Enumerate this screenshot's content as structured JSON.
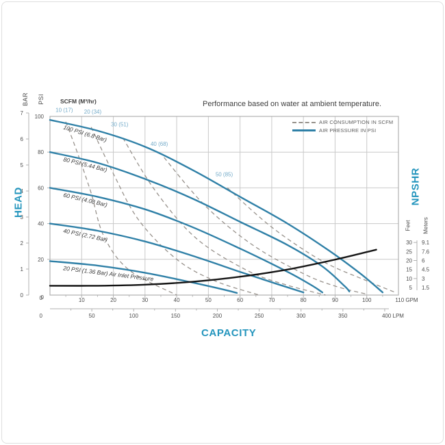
{
  "figure": {
    "title": "Performance based on water at ambient temperature.",
    "scfm_header": "SCFM (M³/hr)",
    "axis_titles": {
      "head": "HEAD",
      "capacity": "CAPACITY",
      "npshr": "NPSHR",
      "bar": "BAR",
      "psi": "PSI",
      "feet": "Feet",
      "meters": "Meters"
    },
    "colors": {
      "curve_blue": "#2f80a7",
      "axis_title_blue": "#2495bd",
      "scfm_label_blue": "#74abc9",
      "dashed_gray": "#98928c",
      "grid_gray": "#c9c9c9",
      "border_gray": "#b0b0b0",
      "npshr_black": "#151515",
      "text_dark": "#3c3c3c",
      "text_gray": "#4d4d4d",
      "legend_text": "#5c5c5c",
      "curve_label": "#3a3a3a"
    }
  },
  "chart_data": {
    "type": "line",
    "title": "Performance based on water at ambient temperature.",
    "xlabel": "CAPACITY",
    "ylabel_left": "HEAD",
    "ylabel_right": "NPSHR",
    "legend": [
      {
        "label": "AIR CONSUMPTION IN SCFM",
        "style": "dashed"
      },
      {
        "label": "AIR PRESSURE IN PSI",
        "style": "solid"
      }
    ],
    "x_axis": {
      "primary_unit": "GPM",
      "primary_range": [
        0,
        110
      ],
      "gpm_ticks": [
        0,
        10,
        20,
        30,
        40,
        50,
        60,
        70,
        80,
        90,
        100,
        110
      ],
      "secondary_unit": "LPM",
      "secondary_range": [
        0,
        400
      ],
      "lpm_ticks": [
        0,
        50,
        100,
        150,
        200,
        250,
        300,
        350,
        400
      ]
    },
    "y_axis_left": {
      "psi_ticks": [
        0,
        20,
        40,
        60,
        80,
        100
      ],
      "bar_ticks": [
        0,
        1,
        2,
        3,
        4,
        5,
        6,
        7
      ],
      "psi_range": [
        0,
        100
      ],
      "bar_range": [
        0,
        7
      ]
    },
    "y_axis_right": {
      "feet_ticks": [
        30,
        25,
        20,
        15,
        10,
        5
      ],
      "meters_ticks": [
        "9.1",
        "7.6",
        "6",
        "4.5",
        "3",
        "1.5"
      ],
      "feet_range": [
        5,
        30
      ]
    },
    "air_pressure_curves": [
      {
        "label": "100 PSI (6.8 Bar)",
        "points_gpm_psi": [
          [
            0,
            98
          ],
          [
            15,
            92
          ],
          [
            30,
            83
          ],
          [
            45,
            70
          ],
          [
            60,
            55
          ],
          [
            75,
            40
          ],
          [
            88,
            25
          ],
          [
            98,
            12
          ],
          [
            105,
            1.5
          ]
        ]
      },
      {
        "label": "80 PSI (5.44 Bar)",
        "points_gpm_psi": [
          [
            0,
            80
          ],
          [
            15,
            74
          ],
          [
            30,
            65
          ],
          [
            45,
            54
          ],
          [
            60,
            41
          ],
          [
            75,
            28
          ],
          [
            86,
            16
          ],
          [
            93,
            5
          ],
          [
            94.5,
            2
          ]
        ]
      },
      {
        "label": "60 PSI (4.08 Bar)",
        "points_gpm_psi": [
          [
            0,
            60
          ],
          [
            15,
            55
          ],
          [
            30,
            48
          ],
          [
            45,
            38
          ],
          [
            60,
            26
          ],
          [
            75,
            13
          ],
          [
            83,
            5
          ],
          [
            86,
            1.5
          ]
        ]
      },
      {
        "label": "40 PSI (2.72 Bar)",
        "points_gpm_psi": [
          [
            0,
            40
          ],
          [
            15,
            36
          ],
          [
            30,
            30
          ],
          [
            45,
            22
          ],
          [
            60,
            13
          ],
          [
            72,
            6
          ],
          [
            80,
            1.5
          ]
        ]
      },
      {
        "label": "20 PSI (1.36 Bar) Air Inlet Pressure",
        "points_gpm_psi": [
          [
            0,
            19
          ],
          [
            15,
            16.5
          ],
          [
            30,
            12.5
          ],
          [
            45,
            7
          ],
          [
            55,
            3
          ],
          [
            59,
            1.2
          ]
        ]
      }
    ],
    "air_consumption_lines": [
      {
        "label": "10 (17)",
        "label_at_gpm_psi": [
          4.5,
          102.5
        ],
        "points_gpm_psi": [
          [
            5,
            97
          ],
          [
            9,
            78
          ],
          [
            13,
            57
          ],
          [
            17,
            33
          ],
          [
            25,
            14
          ],
          [
            40,
            0
          ]
        ]
      },
      {
        "label": "20 (34)",
        "label_at_gpm_psi": [
          13.5,
          101.5
        ],
        "points_gpm_psi": [
          [
            13,
            94
          ],
          [
            20,
            68
          ],
          [
            28,
            42
          ],
          [
            40,
            20
          ],
          [
            52,
            8
          ],
          [
            66,
            0
          ]
        ]
      },
      {
        "label": "30 (51)",
        "label_at_gpm_psi": [
          22,
          94.5
        ],
        "points_gpm_psi": [
          [
            23,
            88
          ],
          [
            33,
            59
          ],
          [
            46,
            32
          ],
          [
            62,
            14
          ],
          [
            74,
            6
          ],
          [
            87,
            0
          ]
        ]
      },
      {
        "label": "40 (68)",
        "label_at_gpm_psi": [
          34.5,
          83.5
        ],
        "points_gpm_psi": [
          [
            36,
            77
          ],
          [
            49,
            50
          ],
          [
            64,
            28
          ],
          [
            80,
            12
          ],
          [
            90,
            5
          ],
          [
            100,
            0.5
          ]
        ]
      },
      {
        "label": "50 (85)",
        "label_at_gpm_psi": [
          55,
          66.5
        ],
        "points_gpm_psi": [
          [
            56,
            60
          ],
          [
            70,
            38
          ],
          [
            86,
            19
          ],
          [
            100,
            8
          ],
          [
            109,
            1.5
          ]
        ]
      }
    ],
    "npshr_curve": {
      "points_gpm_feet": [
        [
          0,
          6
        ],
        [
          15,
          6
        ],
        [
          30,
          6.6
        ],
        [
          45,
          8.2
        ],
        [
          60,
          11
        ],
        [
          75,
          15
        ],
        [
          90,
          20.5
        ],
        [
          103,
          26
        ]
      ]
    }
  }
}
